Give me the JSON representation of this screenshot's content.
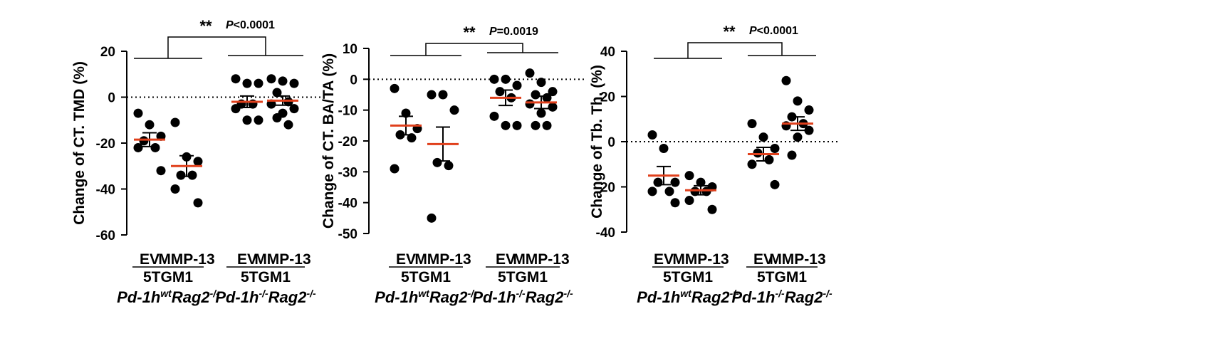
{
  "colors": {
    "axis": "#000000",
    "point": "#000000",
    "mean": "#E0401C",
    "sem": "#000000"
  },
  "chart_data": [
    {
      "type": "scatter",
      "title": "",
      "ylabel": "Change of CT. TMD (%)",
      "ylim": [
        -60,
        20
      ],
      "yticks": [
        20,
        0,
        -20,
        -40,
        -60
      ],
      "categories": [
        "EV",
        "MMP-13",
        "EV",
        "MMP-13"
      ],
      "group_labels": [
        {
          "line1": "5TGM1",
          "line2_base": "Pd-1h",
          "line2_sup1": "wt",
          "line2_mid": "Rag2",
          "line2_sup2": "-/-"
        },
        {
          "line1": "5TGM1",
          "line2_base": "Pd-1h",
          "line2_sup1": "-/-",
          "line2_mid": "Rag2",
          "line2_sup2": "-/-"
        }
      ],
      "significance": {
        "stars": "**",
        "p_label": "P",
        "p_text": "<0.0001"
      },
      "series": [
        {
          "name": "EV",
          "mean": -18.5,
          "sem": 3.0,
          "points": [
            -7,
            -12,
            -17,
            -19,
            -22,
            -22,
            -32
          ]
        },
        {
          "name": "MMP-13",
          "mean": -30,
          "sem": 4.5,
          "points": [
            -11,
            -26,
            -28,
            -34,
            -34,
            -40,
            -46
          ]
        },
        {
          "name": "EV",
          "mean": -2,
          "sem": 2.5,
          "points": [
            8,
            6,
            6,
            -3,
            -3,
            -5,
            -10,
            -10
          ]
        },
        {
          "name": "MMP-13",
          "mean": -1.5,
          "sem": 2.0,
          "points": [
            8,
            7,
            6,
            2,
            -2,
            -3,
            -5,
            -7,
            -9,
            -12
          ]
        }
      ]
    },
    {
      "type": "scatter",
      "title": "",
      "ylabel": "Change of CT. BA/TA (%)",
      "ylim": [
        -50,
        10
      ],
      "yticks": [
        10,
        0,
        -10,
        -20,
        -30,
        -40,
        -50
      ],
      "categories": [
        "EV",
        "MMP-13",
        "EV",
        "MMP-13"
      ],
      "group_labels": [
        {
          "line1": "5TGM1",
          "line2_base": "Pd-1h",
          "line2_sup1": "wt",
          "line2_mid": "Rag2",
          "line2_sup2": "-/-"
        },
        {
          "line1": "5TGM1",
          "line2_base": "Pd-1h",
          "line2_sup1": "-/-",
          "line2_mid": "Rag2",
          "line2_sup2": "-/-"
        }
      ],
      "significance": {
        "stars": "**",
        "p_label": "P",
        "p_text": "=0.0019"
      },
      "series": [
        {
          "name": "EV",
          "mean": -15,
          "sem": 3.0,
          "points": [
            -3,
            -11,
            -16,
            -18,
            -19,
            -29
          ]
        },
        {
          "name": "MMP-13",
          "mean": -21,
          "sem": 5.5,
          "points": [
            -5,
            -5,
            -10,
            -27,
            -28,
            -45
          ]
        },
        {
          "name": "EV",
          "mean": -6,
          "sem": 2.5,
          "points": [
            0,
            0,
            -2,
            -4,
            -6,
            -12,
            -15,
            -15
          ]
        },
        {
          "name": "MMP-13",
          "mean": -7.5,
          "sem": 2.0,
          "points": [
            2,
            -1,
            -4,
            -5,
            -6,
            -8,
            -9,
            -11,
            -15,
            -15
          ]
        }
      ]
    },
    {
      "type": "scatter",
      "title": "",
      "ylabel": "Change of Tb. Th. (%)",
      "ylim": [
        -40,
        40
      ],
      "yticks": [
        40,
        20,
        0,
        -20,
        -40
      ],
      "categories": [
        "EV",
        "MMP-13",
        "EV",
        "MMP-13"
      ],
      "group_labels": [
        {
          "line1": "5TGM1",
          "line2_base": "Pd-1h",
          "line2_sup1": "wt",
          "line2_mid": "Rag2",
          "line2_sup2": "-/-"
        },
        {
          "line1": "5TGM1",
          "line2_base": "Pd-1h",
          "line2_sup1": "-/-",
          "line2_mid": "Rag2",
          "line2_sup2": "-/-"
        }
      ],
      "significance": {
        "stars": "**",
        "p_label": "P",
        "p_text": "<0.0001"
      },
      "series": [
        {
          "name": "EV",
          "mean": -15,
          "sem": 4.0,
          "points": [
            3,
            -3,
            -18,
            -18,
            -22,
            -22,
            -27
          ]
        },
        {
          "name": "MMP-13",
          "mean": -21.5,
          "sem": 2.0,
          "points": [
            -15,
            -18,
            -20,
            -22,
            -22,
            -26,
            -30
          ]
        },
        {
          "name": "EV",
          "mean": -5.5,
          "sem": 3.0,
          "points": [
            8,
            2,
            -3,
            -5,
            -8,
            -10,
            -19
          ]
        },
        {
          "name": "MMP-13",
          "mean": 8,
          "sem": 3.0,
          "points": [
            27,
            18,
            14,
            11,
            8,
            7,
            5,
            2,
            -6
          ]
        }
      ]
    }
  ]
}
